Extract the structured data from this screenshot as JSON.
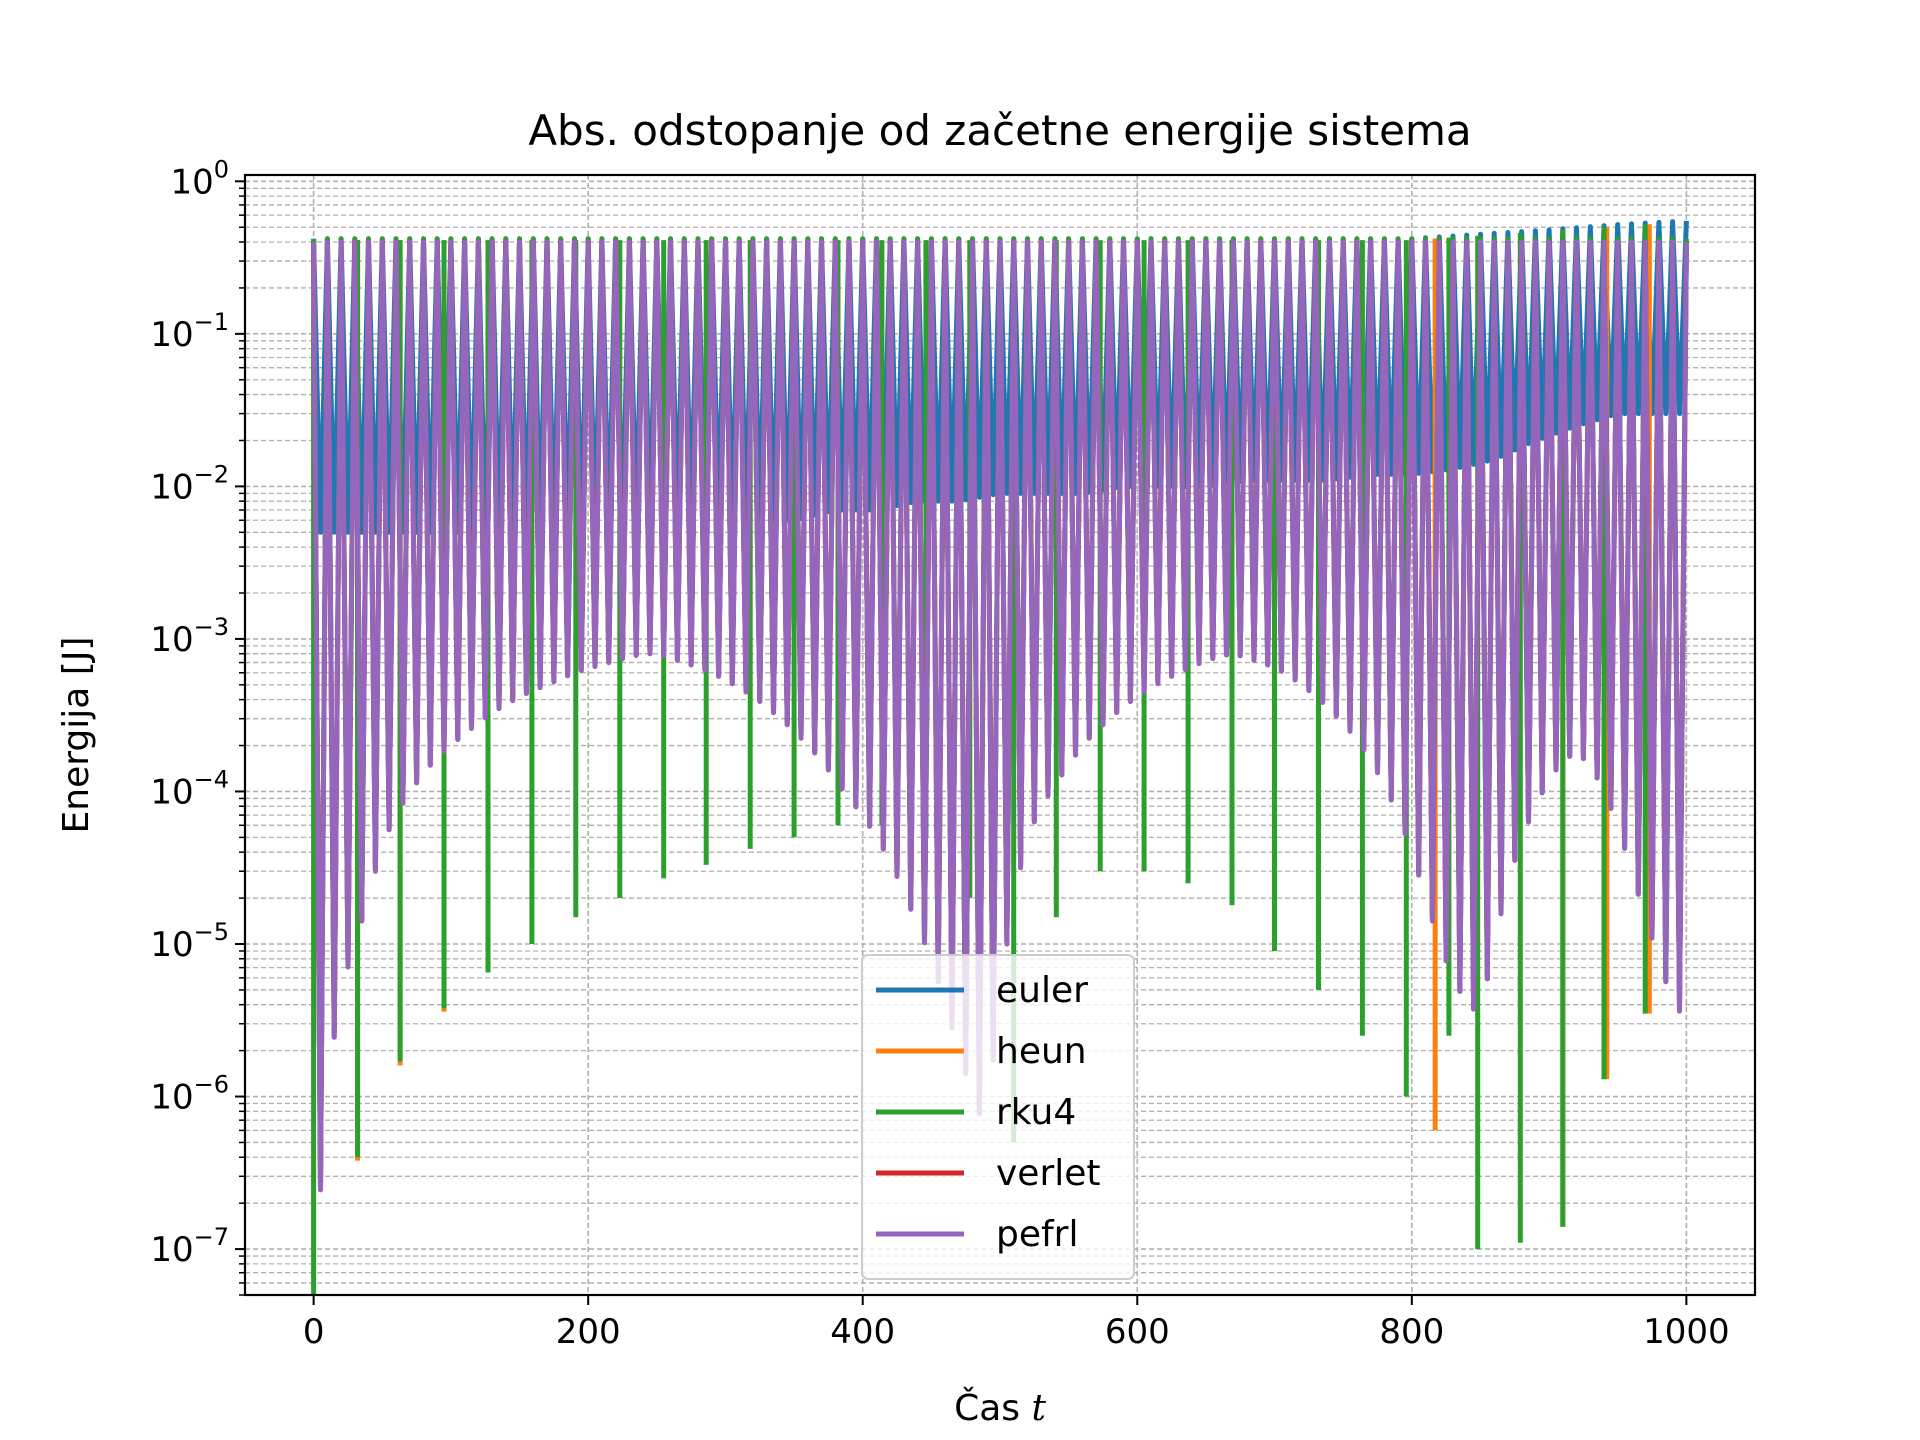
{
  "chart_data": {
    "type": "line",
    "title": "Abs. odstopanje od začetne energije sistema",
    "xlabel_prefix": "Čas ",
    "xlabel_var": "t",
    "ylabel": "Energija [J]",
    "xscale": "linear",
    "yscale": "log",
    "xlim": [
      -50,
      1050
    ],
    "ylim": [
      5e-08,
      1.1
    ],
    "xticks": [
      0,
      200,
      400,
      600,
      800,
      1000
    ],
    "yticks": [
      {
        "value": 1,
        "base": "10",
        "exp": "0"
      },
      {
        "value": 0.1,
        "base": "10",
        "exp": "−1"
      },
      {
        "value": 0.01,
        "base": "10",
        "exp": "−2"
      },
      {
        "value": 0.001,
        "base": "10",
        "exp": "−3"
      },
      {
        "value": 0.0001,
        "base": "10",
        "exp": "−4"
      },
      {
        "value": 1e-05,
        "base": "10",
        "exp": "−5"
      },
      {
        "value": 1e-06,
        "base": "10",
        "exp": "−6"
      },
      {
        "value": 1e-07,
        "base": "10",
        "exp": "−7"
      }
    ],
    "grid": true,
    "legend_position": "lower-center",
    "series": [
      {
        "name": "euler",
        "color": "#1f77b4"
      },
      {
        "name": "heun",
        "color": "#ff7f0e"
      },
      {
        "name": "rku4",
        "color": "#2ca02c"
      },
      {
        "name": "verlet",
        "color": "#d62728"
      },
      {
        "name": "pefrl",
        "color": "#9467bd"
      }
    ],
    "rku4_minima": {
      "x": [
        0,
        32,
        63,
        95,
        127,
        159,
        191,
        223,
        255,
        286,
        318,
        350,
        382,
        414,
        446,
        478,
        510,
        541,
        573,
        605,
        637,
        669,
        700,
        732,
        764,
        796,
        827,
        848,
        879,
        910,
        940,
        970
      ],
      "y": [
        5e-08,
        4e-07,
        1.7e-06,
        3.8e-06,
        6.5e-06,
        1e-05,
        1.5e-05,
        2e-05,
        2.7e-05,
        3.3e-05,
        4.2e-05,
        5e-05,
        6e-05,
        6e-05,
        5e-05,
        2e-05,
        5e-07,
        1.5e-05,
        3e-05,
        3e-05,
        2.5e-05,
        1.8e-05,
        9e-06,
        5e-06,
        2.5e-06,
        1e-06,
        2.5e-06,
        1e-07,
        1.1e-07,
        1.4e-07,
        1.3e-06,
        3.5e-06
      ]
    },
    "heun_minima": {
      "x": [
        32,
        63,
        95,
        817,
        910,
        942,
        973
      ],
      "y": [
        3.8e-07,
        1.6e-06,
        3.6e-06,
        6e-07,
        1.4e-07,
        1.3e-06,
        3.5e-06
      ]
    },
    "pefrl_minima": {
      "x": [
        0,
        10,
        20,
        30,
        40,
        50,
        60,
        70,
        80,
        90,
        100,
        110,
        120,
        130,
        140,
        150,
        160,
        170,
        180,
        190,
        200,
        210,
        220,
        230,
        240,
        250,
        260,
        270,
        280,
        290,
        300,
        310,
        320,
        330,
        340,
        350,
        360,
        370,
        380,
        390,
        400,
        410,
        420,
        430,
        440,
        450,
        460,
        470,
        480,
        490,
        500,
        510,
        520,
        530,
        540,
        550,
        560,
        570,
        580,
        590,
        600,
        610,
        620,
        630,
        640,
        650,
        660,
        670,
        680,
        690,
        700,
        710,
        720,
        730,
        740,
        750,
        760,
        770,
        780,
        790,
        800,
        810,
        820,
        830,
        840,
        850,
        860,
        870,
        880,
        890,
        900,
        910,
        920,
        930,
        940,
        950,
        960,
        970,
        980,
        990,
        1000
      ],
      "y": [
        5e-08,
        1.2e-06,
        5e-06,
        1e-05,
        2e-05,
        4.5e-05,
        7e-05,
        0.0001,
        0.00013,
        0.00017,
        0.0002,
        0.00024,
        0.00028,
        0.00033,
        0.00037,
        0.00042,
        0.00046,
        0.0005,
        0.00055,
        0.0006,
        0.00064,
        0.00068,
        0.00072,
        0.00076,
        0.0008,
        0.0008,
        0.00075,
        0.0007,
        0.00065,
        0.0006,
        0.00054,
        0.00048,
        0.00042,
        0.00036,
        0.0003,
        0.00025,
        0.0002,
        0.00016,
        0.00012,
        9e-05,
        7e-05,
        5e-05,
        3.5e-05,
        2.2e-05,
        1.3e-05,
        8e-06,
        4e-06,
        2e-06,
        1e-06,
        6e-07,
        5e-06,
        2e-05,
        5e-05,
        8e-05,
        0.00011,
        0.00015,
        0.0002,
        0.00025,
        0.0003,
        0.00036,
        0.00042,
        0.00048,
        0.00054,
        0.0006,
        0.00066,
        0.00072,
        0.00077,
        0.0008,
        0.00075,
        0.0007,
        0.00065,
        0.00058,
        0.0005,
        0.00042,
        0.00035,
        0.00028,
        0.00022,
        0.00016,
        0.00011,
        7e-05,
        4e-05,
        2e-05,
        1e-05,
        6e-06,
        4e-06,
        3.5e-06,
        1e-05,
        2.5e-05,
        5e-05,
        8e-05,
        0.00012,
        0.00016,
        0.00018,
        0.00015,
        0.0001,
        6e-05,
        3e-05,
        1.5e-05,
        8e-06,
        4e-06,
        3.3e-06
      ]
    },
    "euler_minima": {
      "x": [
        230,
        260,
        290,
        320,
        350,
        380,
        410,
        440,
        470,
        500,
        530,
        560,
        590,
        620,
        650,
        680,
        710,
        740,
        770,
        800,
        830,
        860,
        890,
        920,
        950,
        980,
        1000
      ],
      "y": [
        0.005,
        0.006,
        0.006,
        0.006,
        0.006,
        0.007,
        0.007,
        0.008,
        0.008,
        0.009,
        0.009,
        0.009,
        0.01,
        0.01,
        0.01,
        0.011,
        0.011,
        0.011,
        0.012,
        0.012,
        0.013,
        0.015,
        0.02,
        0.025,
        0.03,
        0.03,
        0.03
      ]
    },
    "peak_envelope": {
      "x": [
        0,
        800,
        850,
        900,
        950,
        1000
      ],
      "y": [
        0.42,
        0.42,
        0.45,
        0.48,
        0.52,
        0.55
      ]
    },
    "oscillation_period": 10
  }
}
